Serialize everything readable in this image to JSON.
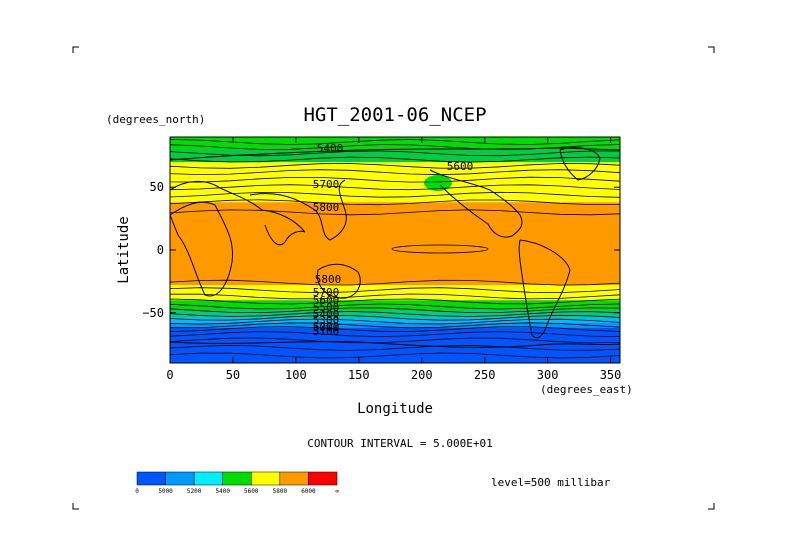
{
  "chart_data": {
    "type": "heatmap",
    "title": "HGT_2001-06_NCEP",
    "xlabel": "Longitude",
    "ylabel": "Latitude",
    "x_units": "(degrees_east)",
    "y_units": "(degrees_north)",
    "xlim": [
      0,
      357.5
    ],
    "ylim": [
      -90,
      90
    ],
    "x_ticks": [
      0,
      50,
      100,
      150,
      200,
      250,
      300,
      350
    ],
    "y_ticks": [
      50,
      0,
      -50
    ],
    "contour_interval_text": "CONTOUR INTERVAL = 5.000E+01",
    "level_text": "level=500 millibar",
    "contour_labels": [
      "5400",
      "5600",
      "5700",
      "5800",
      "5800",
      "5700",
      "5600",
      "5500",
      "5400",
      "5300",
      "5200",
      "5100",
      "5000"
    ],
    "legend": {
      "colors": [
        "#0055ff",
        "#0099ff",
        "#00eeff",
        "#00dd00",
        "#ffff00",
        "#ff9900",
        "#ff0000"
      ],
      "tick_labels": [
        "0",
        "5000",
        "5200",
        "5400",
        "5600",
        "5800",
        "6000",
        "∞"
      ]
    },
    "bands_lat": [
      {
        "lat": [
          90,
          78
        ],
        "value": "5400-5600"
      },
      {
        "lat": [
          78,
          60
        ],
        "value": "5600-5800"
      },
      {
        "lat": [
          60,
          38
        ],
        "value": "5600-5800"
      },
      {
        "lat": [
          38,
          -28
        ],
        "value": "5800-6000"
      },
      {
        "lat": [
          -28,
          -40
        ],
        "value": "5600-5800"
      },
      {
        "lat": [
          -40,
          -52
        ],
        "value": "5400-5600"
      },
      {
        "lat": [
          -52,
          -60
        ],
        "value": "5200-5400"
      },
      {
        "lat": [
          -60,
          -90
        ],
        "value": "5000-5200"
      }
    ]
  }
}
